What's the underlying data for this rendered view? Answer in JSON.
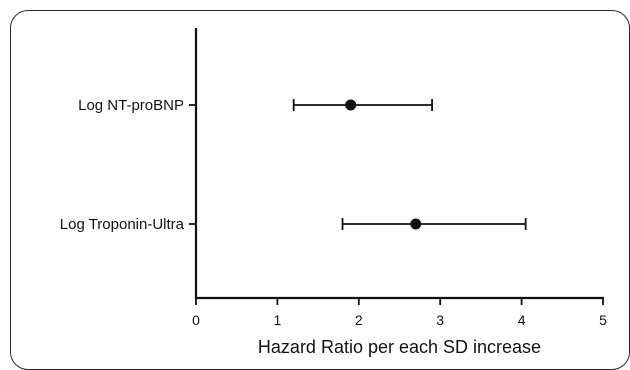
{
  "chart_data": {
    "type": "scatter",
    "xlabel": "Hazard Ratio per each SD increase",
    "xlim": [
      0,
      5
    ],
    "xticks": [
      "0",
      "1",
      "2",
      "3",
      "4",
      "5"
    ],
    "categories": [
      "Log NT-proBNP",
      "Log Troponin-Ultra"
    ],
    "points": [
      {
        "label": "Log NT-proBNP",
        "estimate": 1.9,
        "lower": 1.2,
        "upper": 2.9
      },
      {
        "label": "Log Troponin-Ultra",
        "estimate": 2.7,
        "lower": 1.8,
        "upper": 4.05
      }
    ],
    "grid": false,
    "colors": {
      "marker": "#111111",
      "axis": "#111111"
    }
  }
}
